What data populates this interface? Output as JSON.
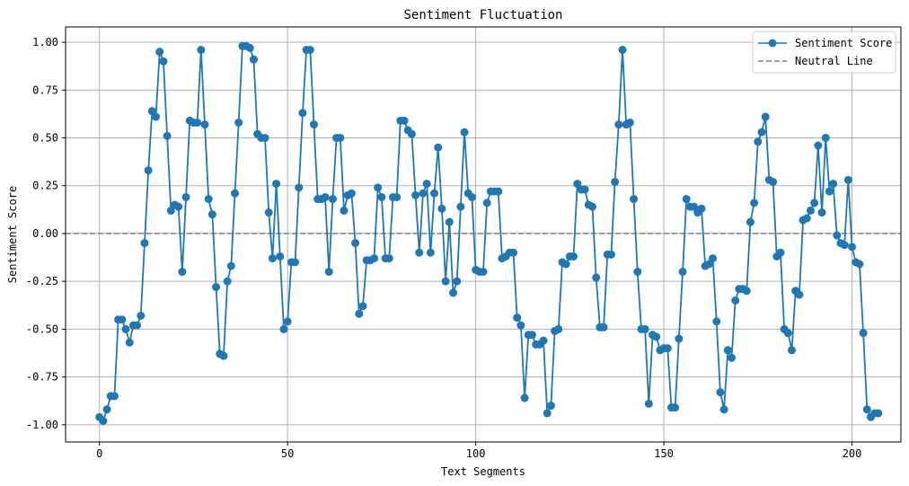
{
  "chart_data": {
    "type": "line",
    "title": "Sentiment Fluctuation",
    "xlabel": "Text Segments",
    "ylabel": "Sentiment Score",
    "xlim": [
      -9,
      213
    ],
    "ylim": [
      -1.09,
      1.08
    ],
    "xticks": [
      0,
      50,
      100,
      150,
      200
    ],
    "yticks": [
      -1.0,
      -0.75,
      -0.5,
      -0.25,
      0.0,
      0.25,
      0.5,
      0.75,
      1.0
    ],
    "ytick_labels": [
      "-1.00",
      "-0.75",
      "-0.50",
      "-0.25",
      "0.00",
      "0.25",
      "0.50",
      "0.75",
      "1.00"
    ],
    "grid": true,
    "legend_position": "top-right",
    "series": [
      {
        "name": "Sentiment Score",
        "color": "#1f77b4",
        "marker": "circle",
        "x_start": 0,
        "values": [
          -0.96,
          -0.98,
          -0.92,
          -0.85,
          -0.85,
          -0.45,
          -0.45,
          -0.5,
          -0.57,
          -0.48,
          -0.48,
          -0.43,
          -0.05,
          0.33,
          0.64,
          0.61,
          0.95,
          0.9,
          0.51,
          0.12,
          0.15,
          0.14,
          -0.2,
          0.19,
          0.59,
          0.58,
          0.58,
          0.96,
          0.57,
          0.18,
          0.1,
          -0.28,
          -0.63,
          -0.64,
          -0.25,
          -0.17,
          0.21,
          0.58,
          0.98,
          0.98,
          0.97,
          0.91,
          0.52,
          0.5,
          0.5,
          0.11,
          -0.13,
          0.26,
          -0.12,
          -0.5,
          -0.46,
          -0.15,
          -0.15,
          0.24,
          0.63,
          0.96,
          0.96,
          0.57,
          0.18,
          0.18,
          0.19,
          -0.2,
          0.18,
          0.5,
          0.5,
          0.12,
          0.2,
          0.21,
          -0.05,
          -0.42,
          -0.38,
          -0.14,
          -0.14,
          -0.13,
          0.24,
          0.19,
          -0.13,
          -0.13,
          0.19,
          0.19,
          0.59,
          0.59,
          0.54,
          0.52,
          0.2,
          -0.1,
          0.21,
          0.26,
          -0.1,
          0.21,
          0.45,
          0.13,
          -0.25,
          0.06,
          -0.31,
          -0.25,
          0.14,
          0.53,
          0.21,
          0.19,
          -0.19,
          -0.2,
          -0.2,
          0.16,
          0.22,
          0.22,
          0.22,
          -0.13,
          -0.12,
          -0.1,
          -0.1,
          -0.44,
          -0.48,
          -0.86,
          -0.53,
          -0.53,
          -0.58,
          -0.58,
          -0.56,
          -0.94,
          -0.9,
          -0.51,
          -0.5,
          -0.15,
          -0.16,
          -0.12,
          -0.12,
          0.26,
          0.23,
          0.23,
          0.15,
          0.14,
          -0.23,
          -0.49,
          -0.49,
          -0.11,
          -0.11,
          0.27,
          0.57,
          0.96,
          0.57,
          0.58,
          0.18,
          -0.2,
          -0.5,
          -0.5,
          -0.89,
          -0.53,
          -0.54,
          -0.61,
          -0.6,
          -0.6,
          -0.91,
          -0.91,
          -0.55,
          -0.2,
          0.18,
          0.14,
          0.14,
          0.11,
          0.13,
          -0.17,
          -0.16,
          -0.13,
          -0.46,
          -0.83,
          -0.92,
          -0.61,
          -0.65,
          -0.35,
          -0.29,
          -0.29,
          -0.3,
          0.06,
          0.16,
          0.48,
          0.53,
          0.61,
          0.28,
          0.27,
          -0.12,
          -0.1,
          -0.5,
          -0.52,
          -0.61,
          -0.3,
          -0.32,
          0.07,
          0.08,
          0.12,
          0.16,
          0.46,
          0.11,
          0.5,
          0.22,
          0.26,
          -0.01,
          -0.05,
          -0.06,
          0.28,
          -0.07,
          -0.15,
          -0.16,
          -0.52,
          -0.92,
          -0.96,
          -0.94,
          -0.94
        ]
      },
      {
        "name": "Neutral Line",
        "color": "#808080",
        "style": "dashed",
        "y": 0.0
      }
    ]
  }
}
